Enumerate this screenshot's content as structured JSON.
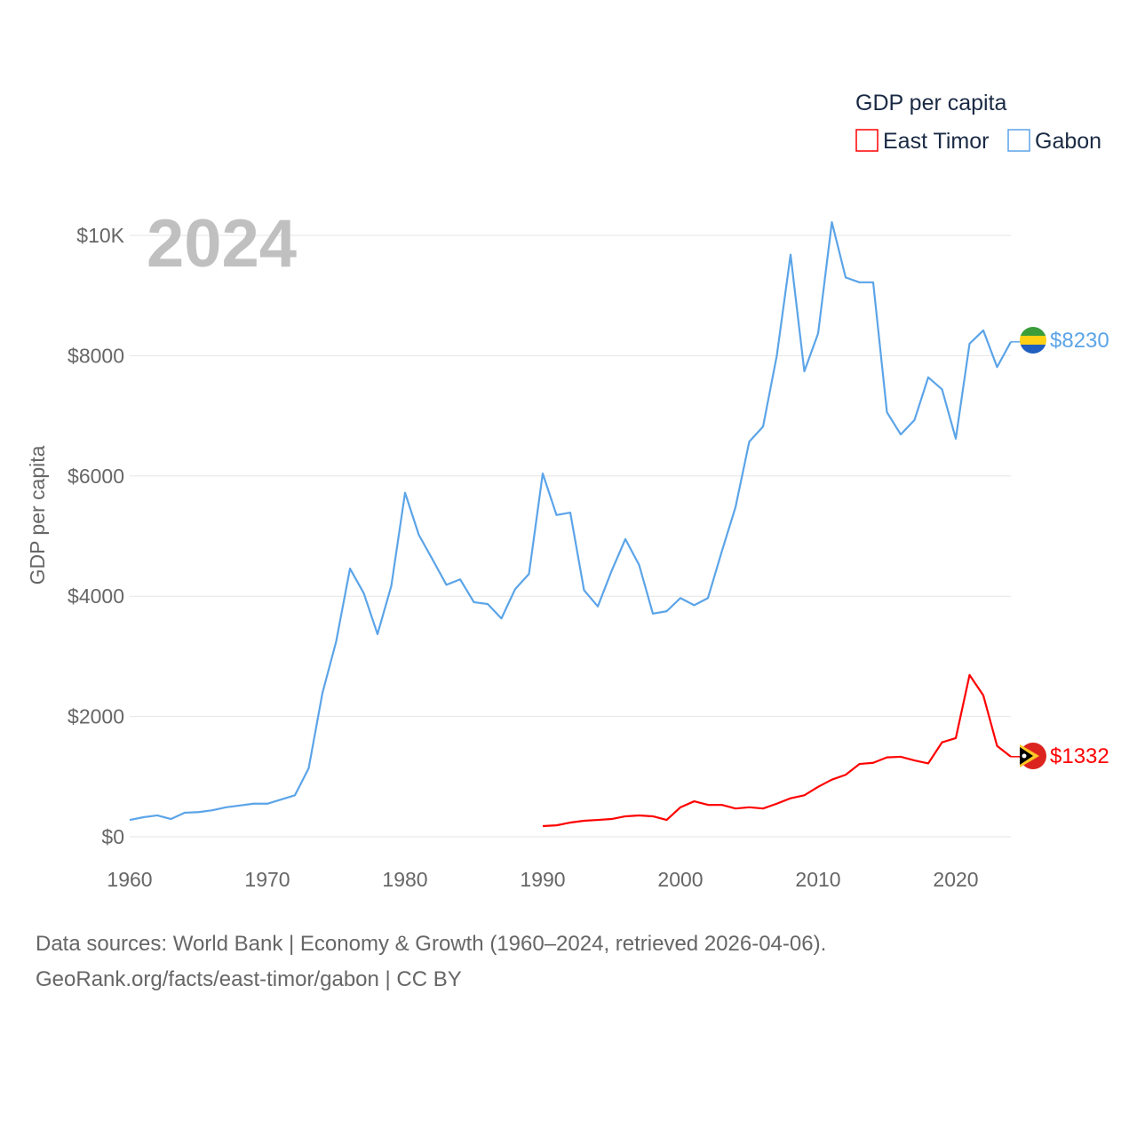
{
  "chart_data": {
    "type": "line",
    "title": "GDP per capita",
    "year_label": "2024",
    "ylabel": "GDP per capita",
    "xlabel": "",
    "xlim": [
      1960,
      2024
    ],
    "ylim": [
      0,
      10000
    ],
    "x_ticks": [
      1960,
      1970,
      1980,
      1990,
      2000,
      2010,
      2020
    ],
    "y_ticks": [
      {
        "v": 0,
        "label": "$0"
      },
      {
        "v": 2000,
        "label": "$2000"
      },
      {
        "v": 4000,
        "label": "$4000"
      },
      {
        "v": 6000,
        "label": "$6000"
      },
      {
        "v": 8000,
        "label": "$8000"
      },
      {
        "v": 10000,
        "label": "$10K"
      }
    ],
    "grid": true,
    "legend_placement": "top-right",
    "series": [
      {
        "name": "East Timor",
        "color": "#ff0000",
        "end_label": "$1332",
        "start_year": 1990,
        "values": [
          177,
          190,
          236,
          266,
          280,
          295,
          340,
          355,
          340,
          280,
          490,
          590,
          530,
          530,
          470,
          490,
          470,
          550,
          640,
          690,
          830,
          950,
          1030,
          1210,
          1230,
          1320,
          1330,
          1270,
          1220,
          1570,
          1640,
          2690,
          2350,
          1510,
          1332
        ]
      },
      {
        "name": "Gabon",
        "color": "#5ba4e8",
        "end_label": "$8230",
        "start_year": 1960,
        "values": [
          280,
          325,
          355,
          295,
          400,
          410,
          440,
          490,
          520,
          550,
          550,
          620,
          690,
          1140,
          2390,
          3250,
          4460,
          4050,
          3370,
          4170,
          5720,
          5020,
          4610,
          4190,
          4280,
          3900,
          3870,
          3630,
          4120,
          4370,
          6040,
          5350,
          5390,
          4100,
          3830,
          4420,
          4950,
          4520,
          3710,
          3750,
          3970,
          3850,
          3970,
          4740,
          5480,
          6570,
          6820,
          8000,
          9680,
          7740,
          8370,
          10220,
          9300,
          9220,
          9220,
          7060,
          6690,
          6930,
          7640,
          7440,
          6620,
          8200,
          8420,
          7810,
          8230
        ]
      }
    ]
  },
  "footer": {
    "line1": "Data sources: World Bank | Economy & Growth (1960–2024, retrieved 2026-04-06).",
    "line2": "GeoRank.org/facts/east-timor/gabon | CC BY"
  }
}
